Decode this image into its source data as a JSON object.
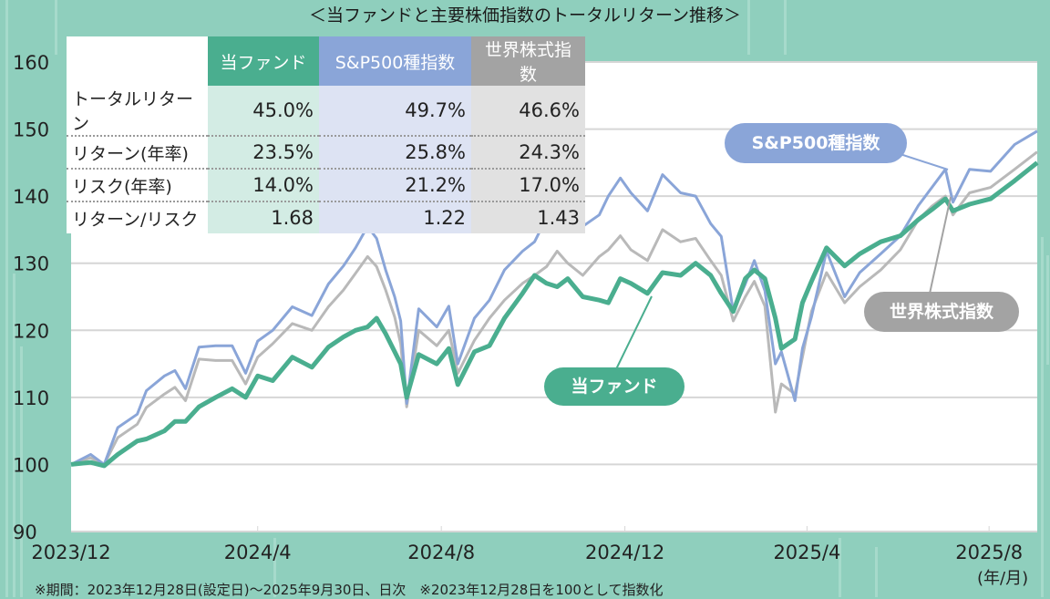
{
  "title": "＜当ファンドと主要株価指数のトータルリターン推移＞",
  "table": {
    "headers": [
      "当ファンド",
      "S&P500種指数",
      "世界株式指数"
    ],
    "rows": [
      {
        "label": "トータルリターン",
        "values": [
          "45.0%",
          "49.7%",
          "46.6%"
        ]
      },
      {
        "label": "リターン(年率)",
        "values": [
          "23.5%",
          "25.8%",
          "24.3%"
        ]
      },
      {
        "label": "リスク(年率)",
        "values": [
          "14.0%",
          "21.2%",
          "17.0%"
        ]
      },
      {
        "label": "リターン/リスク",
        "values": [
          "1.68",
          "1.22",
          "1.43"
        ]
      }
    ]
  },
  "chart_data": {
    "type": "line",
    "xlabel": "(年/月)",
    "ylim": [
      90,
      160
    ],
    "yticks": [
      90,
      100,
      110,
      120,
      130,
      140,
      150,
      160
    ],
    "xtick_labels": [
      "2023/12",
      "2024/4",
      "2024/8",
      "2024/12",
      "2025/4",
      "2025/8"
    ],
    "grid": "horizontal",
    "x": [
      "2023-12-28",
      "2024-01-10",
      "2024-01-19",
      "2024-01-28",
      "2024-02-10",
      "2024-02-16",
      "2024-02-28",
      "2024-03-06",
      "2024-03-13",
      "2024-03-22",
      "2024-04-02",
      "2024-04-13",
      "2024-04-22",
      "2024-04-30",
      "2024-05-10",
      "2024-05-23",
      "2024-06-05",
      "2024-06-16",
      "2024-06-26",
      "2024-07-04",
      "2024-07-12",
      "2024-07-18",
      "2024-07-24",
      "2024-07-30",
      "2024-08-03",
      "2024-08-07",
      "2024-08-15",
      "2024-08-27",
      "2024-09-04",
      "2024-09-10",
      "2024-09-21",
      "2024-10-01",
      "2024-10-11",
      "2024-10-23",
      "2024-10-31",
      "2024-11-08",
      "2024-11-15",
      "2024-11-22",
      "2024-12-02",
      "2024-12-13",
      "2024-12-19",
      "2024-12-27",
      "2025-01-03",
      "2025-01-14",
      "2025-01-24",
      "2025-02-05",
      "2025-02-15",
      "2025-02-25",
      "2025-03-04",
      "2025-03-12",
      "2025-03-20",
      "2025-03-26",
      "2025-04-02",
      "2025-04-09",
      "2025-04-13",
      "2025-04-22",
      "2025-04-27",
      "2025-05-03",
      "2025-05-13",
      "2025-05-25",
      "2025-06-04",
      "2025-06-18",
      "2025-07-01",
      "2025-07-13",
      "2025-07-22",
      "2025-07-31",
      "2025-08-05",
      "2025-08-16",
      "2025-08-30",
      "2025-09-15",
      "2025-09-30"
    ],
    "series": [
      {
        "name": "S&P500種指数",
        "color": "#8aa5d8",
        "values": [
          100,
          101.5,
          100,
          105.5,
          107.5,
          111,
          113.2,
          114,
          111.3,
          117.5,
          117.7,
          117.7,
          113.6,
          118.4,
          120,
          123.5,
          122.2,
          126.9,
          129.6,
          132.3,
          135.5,
          133.7,
          129,
          125,
          121.4,
          109.1,
          123.2,
          120.5,
          123.6,
          115,
          121.8,
          124.5,
          129,
          131.8,
          133.2,
          136.8,
          139.3,
          137.8,
          135.5,
          137.2,
          140,
          142.7,
          140.5,
          137.8,
          143.2,
          140.5,
          140,
          135.9,
          134,
          122.8,
          126.9,
          130.4,
          125.9,
          115,
          116.8,
          109.5,
          117.3,
          122,
          131.8,
          125,
          128.6,
          131.4,
          134.1,
          138.6,
          141.3,
          144,
          139.1,
          144,
          143.7,
          147.7,
          149.7
        ]
      },
      {
        "name": "世界株式指数",
        "color": "#b9b9b9",
        "values": [
          100,
          101,
          100,
          104,
          106,
          108.5,
          110.5,
          111.5,
          109.5,
          115.7,
          115.5,
          115.5,
          112,
          116,
          118,
          121,
          120,
          123.5,
          126,
          128.5,
          131,
          129.5,
          126,
          122,
          118,
          108.6,
          120,
          117.7,
          120,
          113.6,
          118.5,
          121.8,
          124.5,
          127,
          128.2,
          129.5,
          131.8,
          130,
          128.2,
          131,
          132,
          134.1,
          132,
          130.4,
          135,
          133.2,
          133.7,
          130.4,
          128.2,
          121.4,
          125,
          127.3,
          123.6,
          107.8,
          112,
          110.5,
          116,
          122.8,
          128.6,
          124.1,
          126.5,
          129,
          132,
          136.5,
          138.5,
          140,
          137.2,
          140.5,
          141.3,
          144,
          146.6
        ]
      },
      {
        "name": "当ファンド",
        "color": "#4aae8f",
        "values": [
          100,
          100.3,
          99.8,
          101.5,
          103.5,
          103.8,
          105,
          106.4,
          106.4,
          108.6,
          110,
          111.3,
          110,
          113.2,
          112.5,
          116,
          114.5,
          117.5,
          119,
          120,
          120.5,
          121.8,
          119.5,
          116.8,
          115,
          110,
          116.4,
          115,
          117.3,
          111.9,
          116.8,
          117.7,
          121.8,
          125.5,
          128.2,
          127,
          126.5,
          127.7,
          125,
          124.5,
          124.1,
          127.7,
          127,
          125.5,
          128.6,
          128.2,
          130,
          128.2,
          125.5,
          122.8,
          127.7,
          129,
          127.7,
          121.8,
          117.3,
          118.7,
          124.1,
          127.3,
          132.3,
          129.6,
          131.4,
          133.2,
          134.1,
          136.5,
          138,
          139.6,
          137.8,
          138.8,
          139.6,
          142.3,
          145
        ]
      }
    ]
  },
  "callouts": {
    "sp": "S&P500種指数",
    "world": "世界株式指数",
    "fund": "当ファンド"
  },
  "footer": "※期間：2023年12月28日(設定日)～2025年9月30日、日次　※2023年12月28日を100として指数化"
}
